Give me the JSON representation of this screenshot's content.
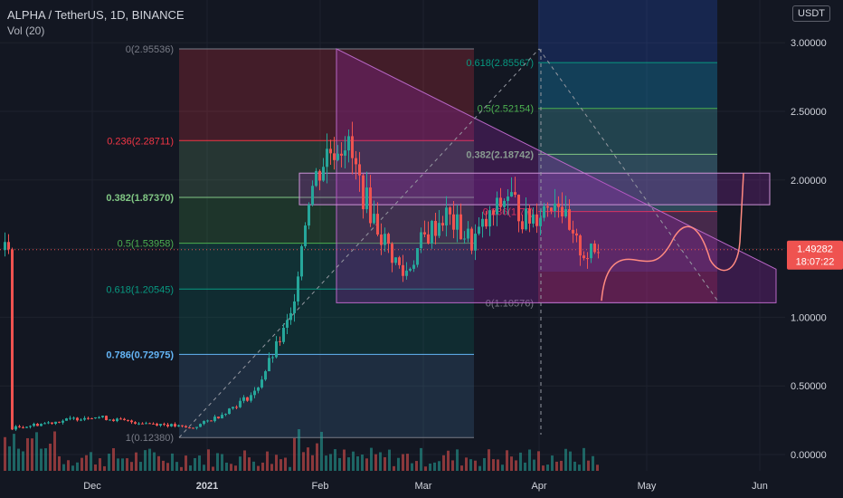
{
  "header": {
    "symbol_line": "ALPHA / TetherUS, 1D, BINANCE",
    "indicator": "Vol (20)",
    "currency": "USDT"
  },
  "price_badge": {
    "price": "1.49282",
    "countdown": "18:07:22"
  },
  "chart_data": {
    "type": "candlestick",
    "y_axis": {
      "ticks": [
        "3.00000",
        "2.50000",
        "2.00000",
        "1.50000",
        "1.00000",
        "0.50000",
        "0.00000"
      ],
      "range": [
        0,
        3.05
      ]
    },
    "x_axis": {
      "ticks": [
        "Dec",
        "2021",
        "Feb",
        "Mar",
        "Apr",
        "May",
        "Jun"
      ]
    },
    "fib_left": {
      "levels": [
        {
          "label": "0(2.95536)",
          "value": 2.95536,
          "color": "#787b86"
        },
        {
          "label": "0.236(2.28711)",
          "value": 2.28711,
          "color": "#f23645"
        },
        {
          "label": "0.382(1.87370)",
          "value": 1.8737,
          "color": "#81c784"
        },
        {
          "label": "0.5(1.53958)",
          "value": 1.53958,
          "color": "#4caf50"
        },
        {
          "label": "0.618(1.20545)",
          "value": 1.20545,
          "color": "#089981"
        },
        {
          "label": "0.786(0.72975)",
          "value": 0.72975,
          "color": "#64b5f6"
        },
        {
          "label": "1(0.12380)",
          "value": 0.1238,
          "color": "#787b86"
        }
      ]
    },
    "fib_right": {
      "levels": [
        {
          "label": "0.618(2.85567)",
          "value": 2.85567,
          "color": "#089981"
        },
        {
          "label": "0.5(2.52154)",
          "value": 2.52154,
          "color": "#4caf50"
        },
        {
          "label": "0.382(2.18742)",
          "value": 2.18742,
          "color": "#81c784"
        },
        {
          "label": "0.236(1.77)",
          "value": 1.77,
          "color": "#f23645"
        },
        {
          "label": "0(1.10576)",
          "value": 1.10576,
          "color": "#787b86"
        }
      ]
    },
    "projection_box": {
      "top": 2.05,
      "bottom": 1.82
    },
    "colors": {
      "up": "#26a69a",
      "down": "#ef5350",
      "accent": "#2962ff"
    }
  }
}
